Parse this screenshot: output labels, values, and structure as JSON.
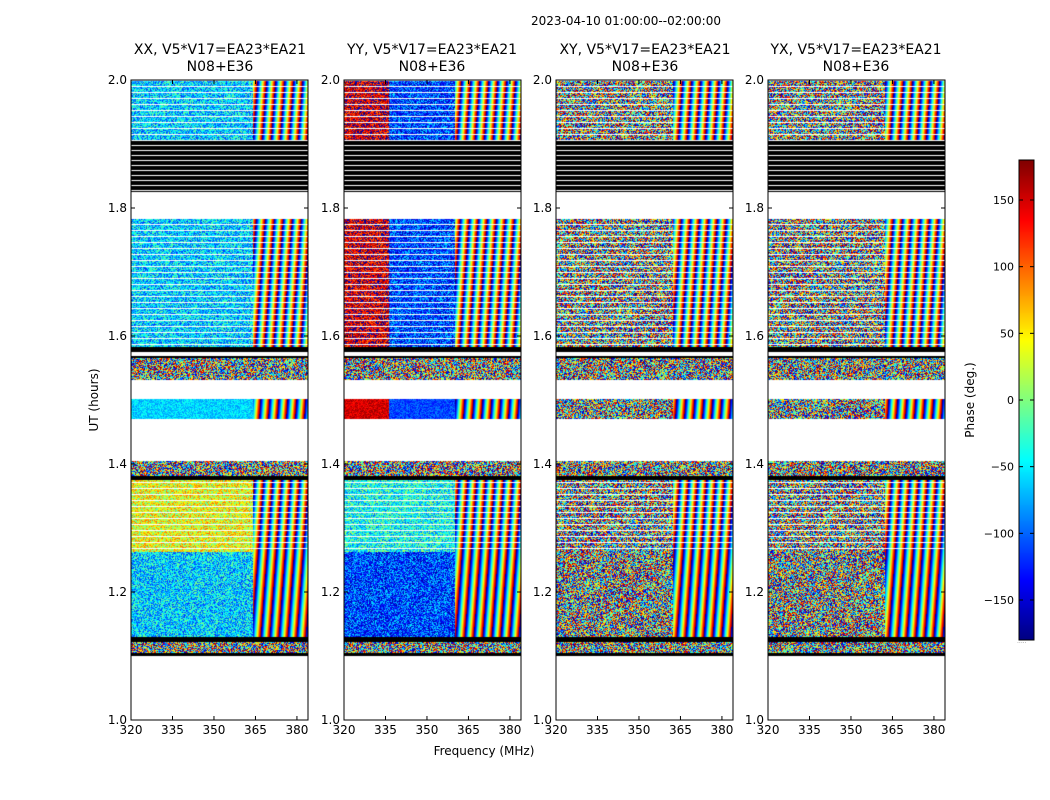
{
  "chart_data": {
    "type": "heatmap",
    "suptitle": "2023-04-10  01:00:00--02:00:00",
    "xlabel": "Frequency (MHz)",
    "ylabel": "UT (hours)",
    "xlim": [
      320,
      384
    ],
    "ylim": [
      1.0,
      2.0
    ],
    "xticks": [
      320,
      335,
      350,
      365,
      380
    ],
    "yticks": [
      "1.0",
      "1.2",
      "1.4",
      "1.6",
      "1.8",
      "2.0"
    ],
    "colorbar": {
      "label": "Phase (deg.)",
      "vmin": -180,
      "vmax": 180,
      "ticks": [
        150,
        100,
        50,
        0,
        -50,
        -100,
        -150
      ],
      "tick_labels": [
        "150",
        "100",
        "50",
        "0",
        "−50",
        "−100",
        "−150"
      ],
      "colormap": "jet"
    },
    "flagged_bands_ut": [
      [
        1.1,
        1.105
      ],
      [
        1.122,
        1.13
      ],
      [
        1.375,
        1.382
      ],
      [
        1.565,
        1.568
      ],
      [
        1.575,
        1.583
      ],
      [
        1.825,
        1.905
      ]
    ],
    "no_data_ut": [
      [
        1.0,
        1.1
      ],
      [
        1.405,
        1.47
      ],
      [
        1.502,
        1.532
      ],
      [
        1.785,
        1.825
      ]
    ],
    "panels": [
      {
        "title": "XX, V5*V17=EA23*EA21",
        "subtitle": "N08+E36",
        "pol": "XX",
        "base_phase_deg": -60,
        "break_mhz": 364
      },
      {
        "title": "YY, V5*V17=EA23*EA21",
        "subtitle": "N08+E36",
        "pol": "YY",
        "base_phase_deg": -110,
        "break_mhz": 360
      },
      {
        "title": "XY, V5*V17=EA23*EA21",
        "subtitle": "N08+E36",
        "pol": "XY",
        "base_phase_deg": null,
        "break_mhz": 362
      },
      {
        "title": "YX, V5*V17=EA23*EA21",
        "subtitle": "N08+E36",
        "pol": "YX",
        "base_phase_deg": null,
        "break_mhz": 362
      }
    ]
  }
}
